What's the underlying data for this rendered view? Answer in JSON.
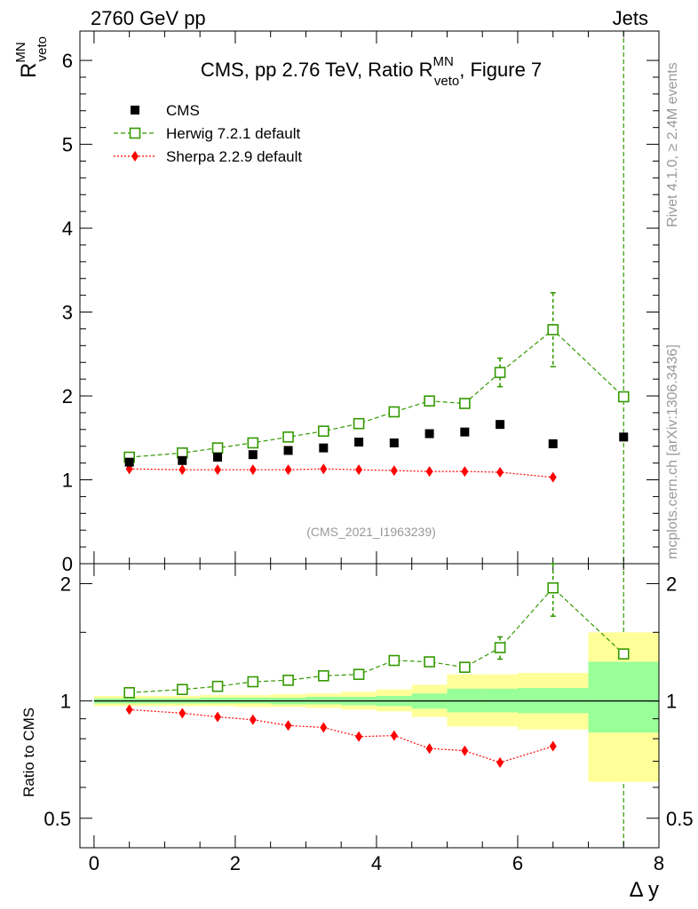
{
  "header": {
    "left": "2760 GeV pp",
    "right": "Jets"
  },
  "side_labels": {
    "top": "Rivet 4.1.0, ≥ 2.4M events",
    "bottom": "mcplots.cern.ch [arXiv:1306.3436]"
  },
  "chart_data": [
    {
      "type": "scatter",
      "title_main": "CMS, pp 2.76 TeV, Ratio R",
      "title_sup": "MN",
      "title_sub": "veto",
      "title_tail": ", Figure 7",
      "ylabel_main": "R",
      "ylabel_sup": "MN",
      "ylabel_sub": "veto",
      "xlabel": "Δ y",
      "xlim": [
        -0.2,
        8.0
      ],
      "ylim": [
        0,
        6.35
      ],
      "yticks": [
        0,
        1,
        2,
        3,
        4,
        5,
        6
      ],
      "ytick_labels": [
        "0",
        "1",
        "2",
        "3",
        "4",
        "5",
        "6"
      ],
      "watermark": "(CMS_2021_I1963239)",
      "legend": [
        "CMS",
        "Herwig 7.2.1 default",
        "Sherpa 2.2.9 default"
      ],
      "series": [
        {
          "name": "CMS",
          "color": "#000000",
          "marker": "filled-square",
          "x": [
            0.5,
            1.25,
            1.75,
            2.25,
            2.75,
            3.25,
            3.75,
            4.25,
            4.75,
            5.25,
            5.75,
            6.5,
            7.5
          ],
          "y": [
            1.21,
            1.23,
            1.27,
            1.3,
            1.35,
            1.38,
            1.45,
            1.44,
            1.55,
            1.57,
            1.66,
            1.43,
            1.51
          ]
        },
        {
          "name": "Herwig 7.2.1 default",
          "color": "#339900",
          "marker": "open-square",
          "line": "dashed",
          "x": [
            0.5,
            1.25,
            1.75,
            2.25,
            2.75,
            3.25,
            3.75,
            4.25,
            4.75,
            5.25,
            5.75,
            6.5,
            7.5
          ],
          "y": [
            1.27,
            1.32,
            1.38,
            1.44,
            1.51,
            1.58,
            1.67,
            1.81,
            1.94,
            1.91,
            2.28,
            2.79,
            1.99
          ],
          "err": [
            0.01,
            0.01,
            0.01,
            0.01,
            0.01,
            0.01,
            0.02,
            0.02,
            0.03,
            0.04,
            0.17,
            0.44,
            0.0
          ]
        },
        {
          "name": "Sherpa 2.2.9 default",
          "color": "#ff0000",
          "marker": "diamond",
          "line": "dotted",
          "x": [
            0.5,
            1.25,
            1.75,
            2.25,
            2.75,
            3.25,
            3.75,
            4.25,
            4.75,
            5.25,
            5.75,
            6.5
          ],
          "y": [
            1.13,
            1.12,
            1.12,
            1.12,
            1.12,
            1.13,
            1.12,
            1.11,
            1.1,
            1.1,
            1.09,
            1.03
          ]
        }
      ]
    },
    {
      "type": "scatter",
      "ylabel": "Ratio to CMS",
      "xlim": [
        -0.2,
        8.0
      ],
      "ylim": [
        0.42,
        2.25
      ],
      "ylog": true,
      "yticks": [
        0.5,
        1,
        2
      ],
      "ytick_labels": [
        "0.5",
        "1",
        "2"
      ],
      "xticks": [
        0,
        2,
        4,
        6,
        8
      ],
      "xtick_labels": [
        "0",
        "2",
        "4",
        "6",
        "8"
      ],
      "bands": [
        {
          "x0": 0.0,
          "x1": 1.0,
          "g": [
            0.985,
            1.015
          ],
          "y": [
            0.97,
            1.03
          ]
        },
        {
          "x0": 1.0,
          "x1": 1.5,
          "g": [
            0.985,
            1.015
          ],
          "y": [
            0.97,
            1.03
          ]
        },
        {
          "x0": 1.5,
          "x1": 2.0,
          "g": [
            0.985,
            1.02
          ],
          "y": [
            0.97,
            1.035
          ]
        },
        {
          "x0": 2.0,
          "x1": 2.5,
          "g": [
            0.985,
            1.02
          ],
          "y": [
            0.965,
            1.035
          ]
        },
        {
          "x0": 2.5,
          "x1": 3.0,
          "g": [
            0.98,
            1.02
          ],
          "y": [
            0.965,
            1.04
          ]
        },
        {
          "x0": 3.0,
          "x1": 3.5,
          "g": [
            0.98,
            1.025
          ],
          "y": [
            0.96,
            1.045
          ]
        },
        {
          "x0": 3.5,
          "x1": 4.0,
          "g": [
            0.975,
            1.025
          ],
          "y": [
            0.95,
            1.055
          ]
        },
        {
          "x0": 4.0,
          "x1": 4.5,
          "g": [
            0.97,
            1.03
          ],
          "y": [
            0.94,
            1.07
          ]
        },
        {
          "x0": 4.5,
          "x1": 5.0,
          "g": [
            0.955,
            1.045
          ],
          "y": [
            0.91,
            1.1
          ]
        },
        {
          "x0": 5.0,
          "x1": 5.5,
          "g": [
            0.935,
            1.075
          ],
          "y": [
            0.86,
            1.17
          ]
        },
        {
          "x0": 5.5,
          "x1": 6.0,
          "g": [
            0.935,
            1.075
          ],
          "y": [
            0.86,
            1.17
          ]
        },
        {
          "x0": 6.0,
          "x1": 7.0,
          "g": [
            0.93,
            1.08
          ],
          "y": [
            0.845,
            1.18
          ]
        },
        {
          "x0": 7.0,
          "x1": 8.0,
          "g": [
            0.83,
            1.26
          ],
          "y": [
            0.62,
            1.5
          ]
        }
      ],
      "series": [
        {
          "name": "Herwig 7.2.1 default",
          "color": "#339900",
          "marker": "open-square",
          "line": "dashed",
          "x": [
            0.5,
            1.25,
            1.75,
            2.25,
            2.75,
            3.25,
            3.75,
            4.25,
            4.75,
            5.25,
            5.75,
            6.5,
            7.5
          ],
          "y": [
            1.05,
            1.07,
            1.09,
            1.12,
            1.13,
            1.16,
            1.17,
            1.27,
            1.26,
            1.22,
            1.37,
            1.95,
            1.32
          ],
          "err": [
            0.005,
            0.005,
            0.005,
            0.005,
            0.005,
            0.005,
            0.01,
            0.01,
            0.01,
            0.02,
            0.09,
            0.3,
            0.0
          ]
        },
        {
          "name": "Sherpa 2.2.9 default",
          "color": "#ff0000",
          "marker": "diamond",
          "line": "dotted",
          "x": [
            0.5,
            1.25,
            1.75,
            2.25,
            2.75,
            3.25,
            3.75,
            4.25,
            4.75,
            5.25,
            5.75,
            6.5
          ],
          "y": [
            0.95,
            0.93,
            0.91,
            0.895,
            0.865,
            0.855,
            0.81,
            0.815,
            0.755,
            0.745,
            0.695,
            0.765
          ]
        }
      ]
    }
  ]
}
